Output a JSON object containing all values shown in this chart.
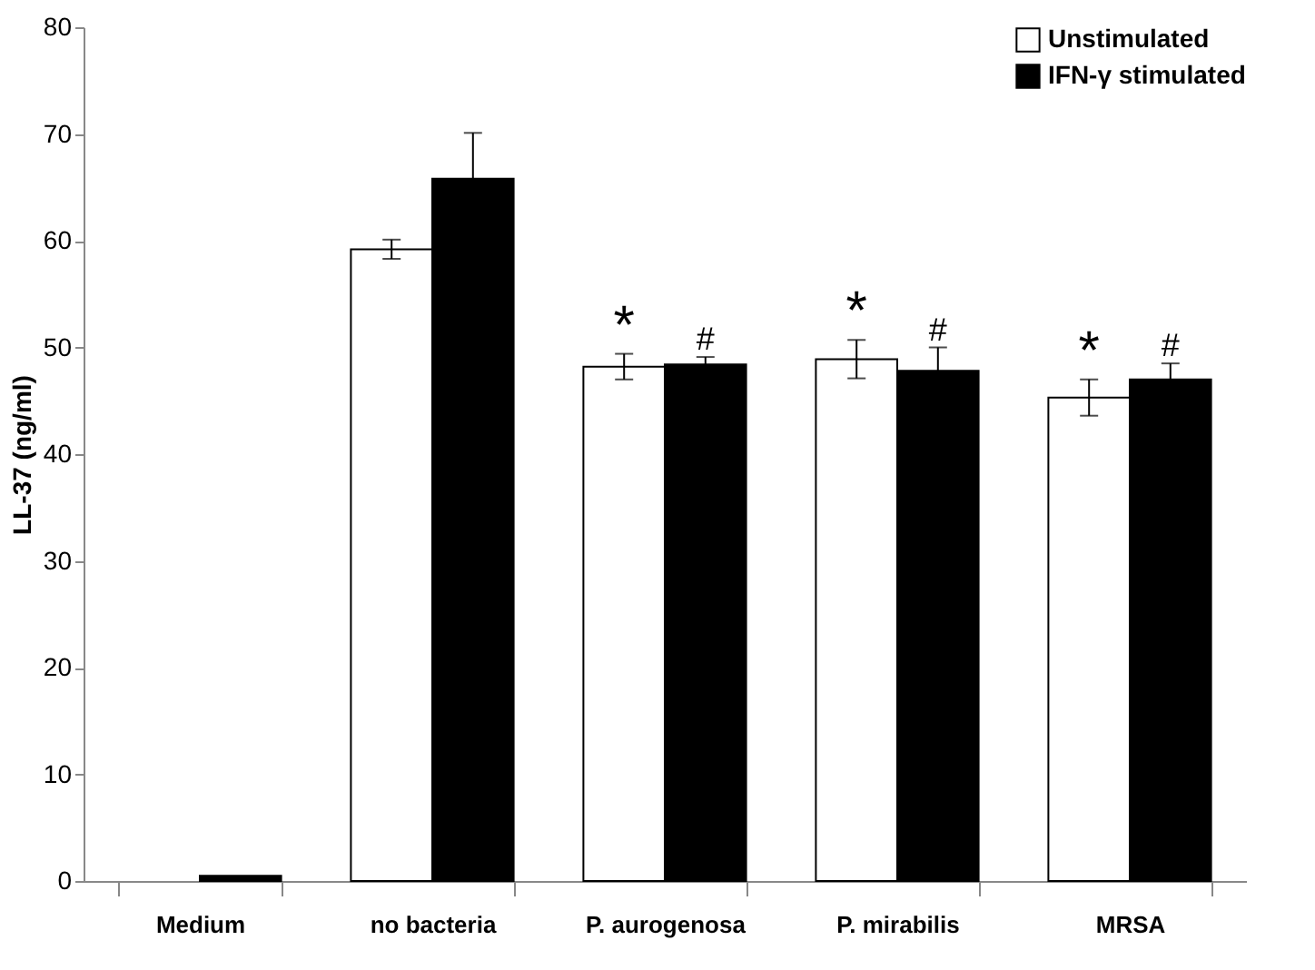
{
  "chart_data": {
    "type": "bar",
    "ylabel": "LL-37 (ng/ml)",
    "categories": [
      "Medium",
      "no bacteria",
      "P. aurogenosa",
      "P. mirabilis",
      "MRSA"
    ],
    "series": [
      {
        "name": "Unstimulated",
        "color": "#ffffff",
        "values": [
          null,
          59.2,
          48.2,
          48.9,
          45.3
        ],
        "errors": [
          null,
          0.9,
          1.2,
          1.8,
          1.7
        ]
      },
      {
        "name": "IFN-γ stimulated",
        "color": "#000000",
        "values": [
          0.5,
          65.8,
          48.4,
          47.8,
          47.0
        ],
        "errors": [
          null,
          4.3,
          0.7,
          2.2,
          1.5
        ]
      }
    ],
    "annotations": [
      {
        "text": "*",
        "x": "P. aurogenosa",
        "y": 48.2
      },
      {
        "text": "#",
        "x": "P. aurogenosa",
        "y": 48.4
      },
      {
        "text": "*",
        "x": "P. mirabilis",
        "y": 48.9
      },
      {
        "text": "#",
        "x": "P. mirabilis",
        "y": 47.8
      },
      {
        "text": "*",
        "x": "MRSA",
        "y": 45.3
      },
      {
        "text": "#",
        "x": "MRSA",
        "y": 47.0
      }
    ],
    "ylim": [
      0,
      80
    ],
    "yticks": [
      0,
      10,
      20,
      30,
      40,
      50,
      60,
      70,
      80
    ],
    "grid": false,
    "legend": "top right"
  }
}
